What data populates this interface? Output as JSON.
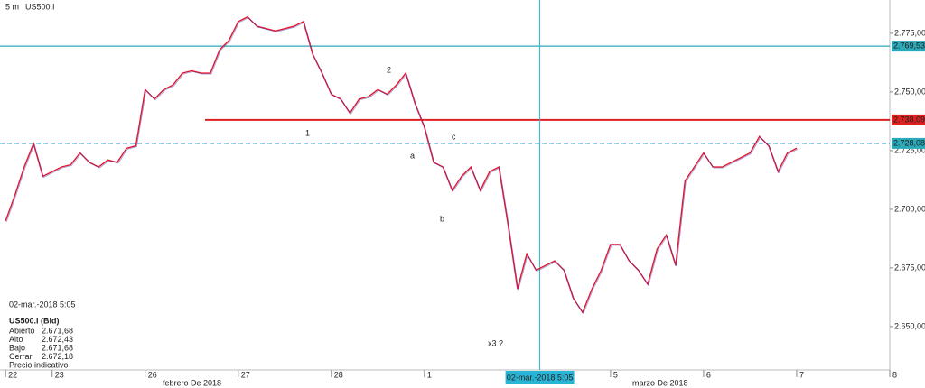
{
  "header": {
    "interval": "5 m",
    "symbol": "US500.I"
  },
  "chart_data": {
    "type": "line",
    "x": [
      -0.5,
      -0.4,
      -0.3,
      -0.2,
      -0.1,
      0.0,
      0.1,
      0.2,
      0.3,
      0.4,
      0.5,
      0.6,
      0.7,
      0.8,
      0.9,
      1.0,
      1.1,
      1.2,
      1.3,
      1.4,
      1.5,
      1.6,
      1.7,
      1.8,
      1.9,
      2.0,
      2.1,
      2.2,
      2.3,
      2.4,
      2.5,
      2.6,
      2.7,
      2.8,
      2.9,
      3.0,
      3.1,
      3.2,
      3.3,
      3.4,
      3.5,
      3.6,
      3.7,
      3.8,
      3.9,
      4.0,
      4.1,
      4.2,
      4.3,
      4.4,
      4.5,
      4.6,
      4.7,
      4.8,
      4.9,
      5.0,
      5.1,
      5.2,
      5.3,
      5.4,
      5.5,
      5.6,
      5.7,
      5.8,
      5.9,
      6.0,
      6.1,
      6.2,
      6.3,
      6.4,
      6.5,
      6.6,
      6.7,
      6.8,
      6.9,
      7.0,
      7.1,
      7.2,
      7.3,
      7.4,
      7.5,
      7.6,
      7.7,
      7.8,
      7.9,
      8.0
    ],
    "series": [
      {
        "name": "US500.I",
        "color": "#e0182d",
        "values": [
          2695,
          2706,
          2718,
          2728,
          2714,
          2716,
          2718,
          2719,
          2724,
          2720,
          2718,
          2721,
          2720,
          2726,
          2727,
          2751,
          2747,
          2751,
          2753,
          2758,
          2759,
          2758,
          2758,
          2768,
          2772,
          2780,
          2782,
          2778,
          2777,
          2776,
          2777,
          2778,
          2780,
          2766,
          2758,
          2749,
          2747,
          2741,
          2747,
          2748,
          2751,
          2749,
          2753,
          2758,
          2745,
          2735,
          2720,
          2718,
          2708,
          2714,
          2718,
          2708,
          2716,
          2718,
          2693,
          2666,
          2681,
          2674,
          2676,
          2678,
          2674,
          2662,
          2656,
          2666,
          2674,
          2685,
          2685,
          2678,
          2674,
          2668,
          2683,
          2689,
          2676,
          2712,
          2718,
          2724,
          2718,
          2718,
          2720,
          2722,
          2724,
          2731,
          2727,
          2716,
          2724,
          2726
        ]
      }
    ],
    "xlim": [
      -0.56,
      9.0
    ],
    "xticks": [
      {
        "value": -0.5,
        "label": "22"
      },
      {
        "value": 0,
        "label": "23"
      },
      {
        "value": 1,
        "label": "26"
      },
      {
        "value": 2,
        "label": "27"
      },
      {
        "value": 3,
        "label": "28"
      },
      {
        "value": 4,
        "label": "1"
      },
      {
        "value": 6,
        "label": "5"
      },
      {
        "value": 7,
        "label": "6"
      },
      {
        "value": 8,
        "label": "7"
      },
      {
        "value": 9,
        "label": "8"
      }
    ],
    "month_labels": [
      "febrero De 2018",
      "marzo De 2018"
    ],
    "ylim": [
      2631.5,
      2789.2
    ],
    "yticks": [
      {
        "value": 2650,
        "label": "2.650,00"
      },
      {
        "value": 2675,
        "label": "2.675,00"
      },
      {
        "value": 2700,
        "label": "2.700,00"
      },
      {
        "value": 2725,
        "label": "2.725,00"
      },
      {
        "value": 2750,
        "label": "2.750,00"
      },
      {
        "value": 2775,
        "label": "2.775,00"
      }
    ],
    "levels": [
      {
        "value": 2769.53,
        "label": "2.769,53",
        "color": "#2aa9b8",
        "style": "solid"
      },
      {
        "value": 2738.09,
        "label": "2.738,09",
        "color": "#e02020",
        "style": "solid"
      },
      {
        "value": 2728.08,
        "label": "2.728,08",
        "color": "#2aa9b8",
        "style": "dashed"
      }
    ],
    "crosshair": {
      "x": 5.24,
      "label": "02-mar.-2018 5:05",
      "color": "#29b6d6"
    },
    "annotations": [
      "1",
      "2",
      "a",
      "b",
      "c",
      "x3 ?"
    ]
  },
  "info": {
    "date": "02-mar.-2018 5:05",
    "symbol": "US500.I (Bid)",
    "rows": [
      [
        "Abierto",
        "2.671,68"
      ],
      [
        "Alto",
        "2.672,43"
      ],
      [
        "Bajo",
        "2.671,68"
      ],
      [
        "Cerrar",
        "2.672,18"
      ]
    ],
    "note": "Precio indicativo"
  }
}
